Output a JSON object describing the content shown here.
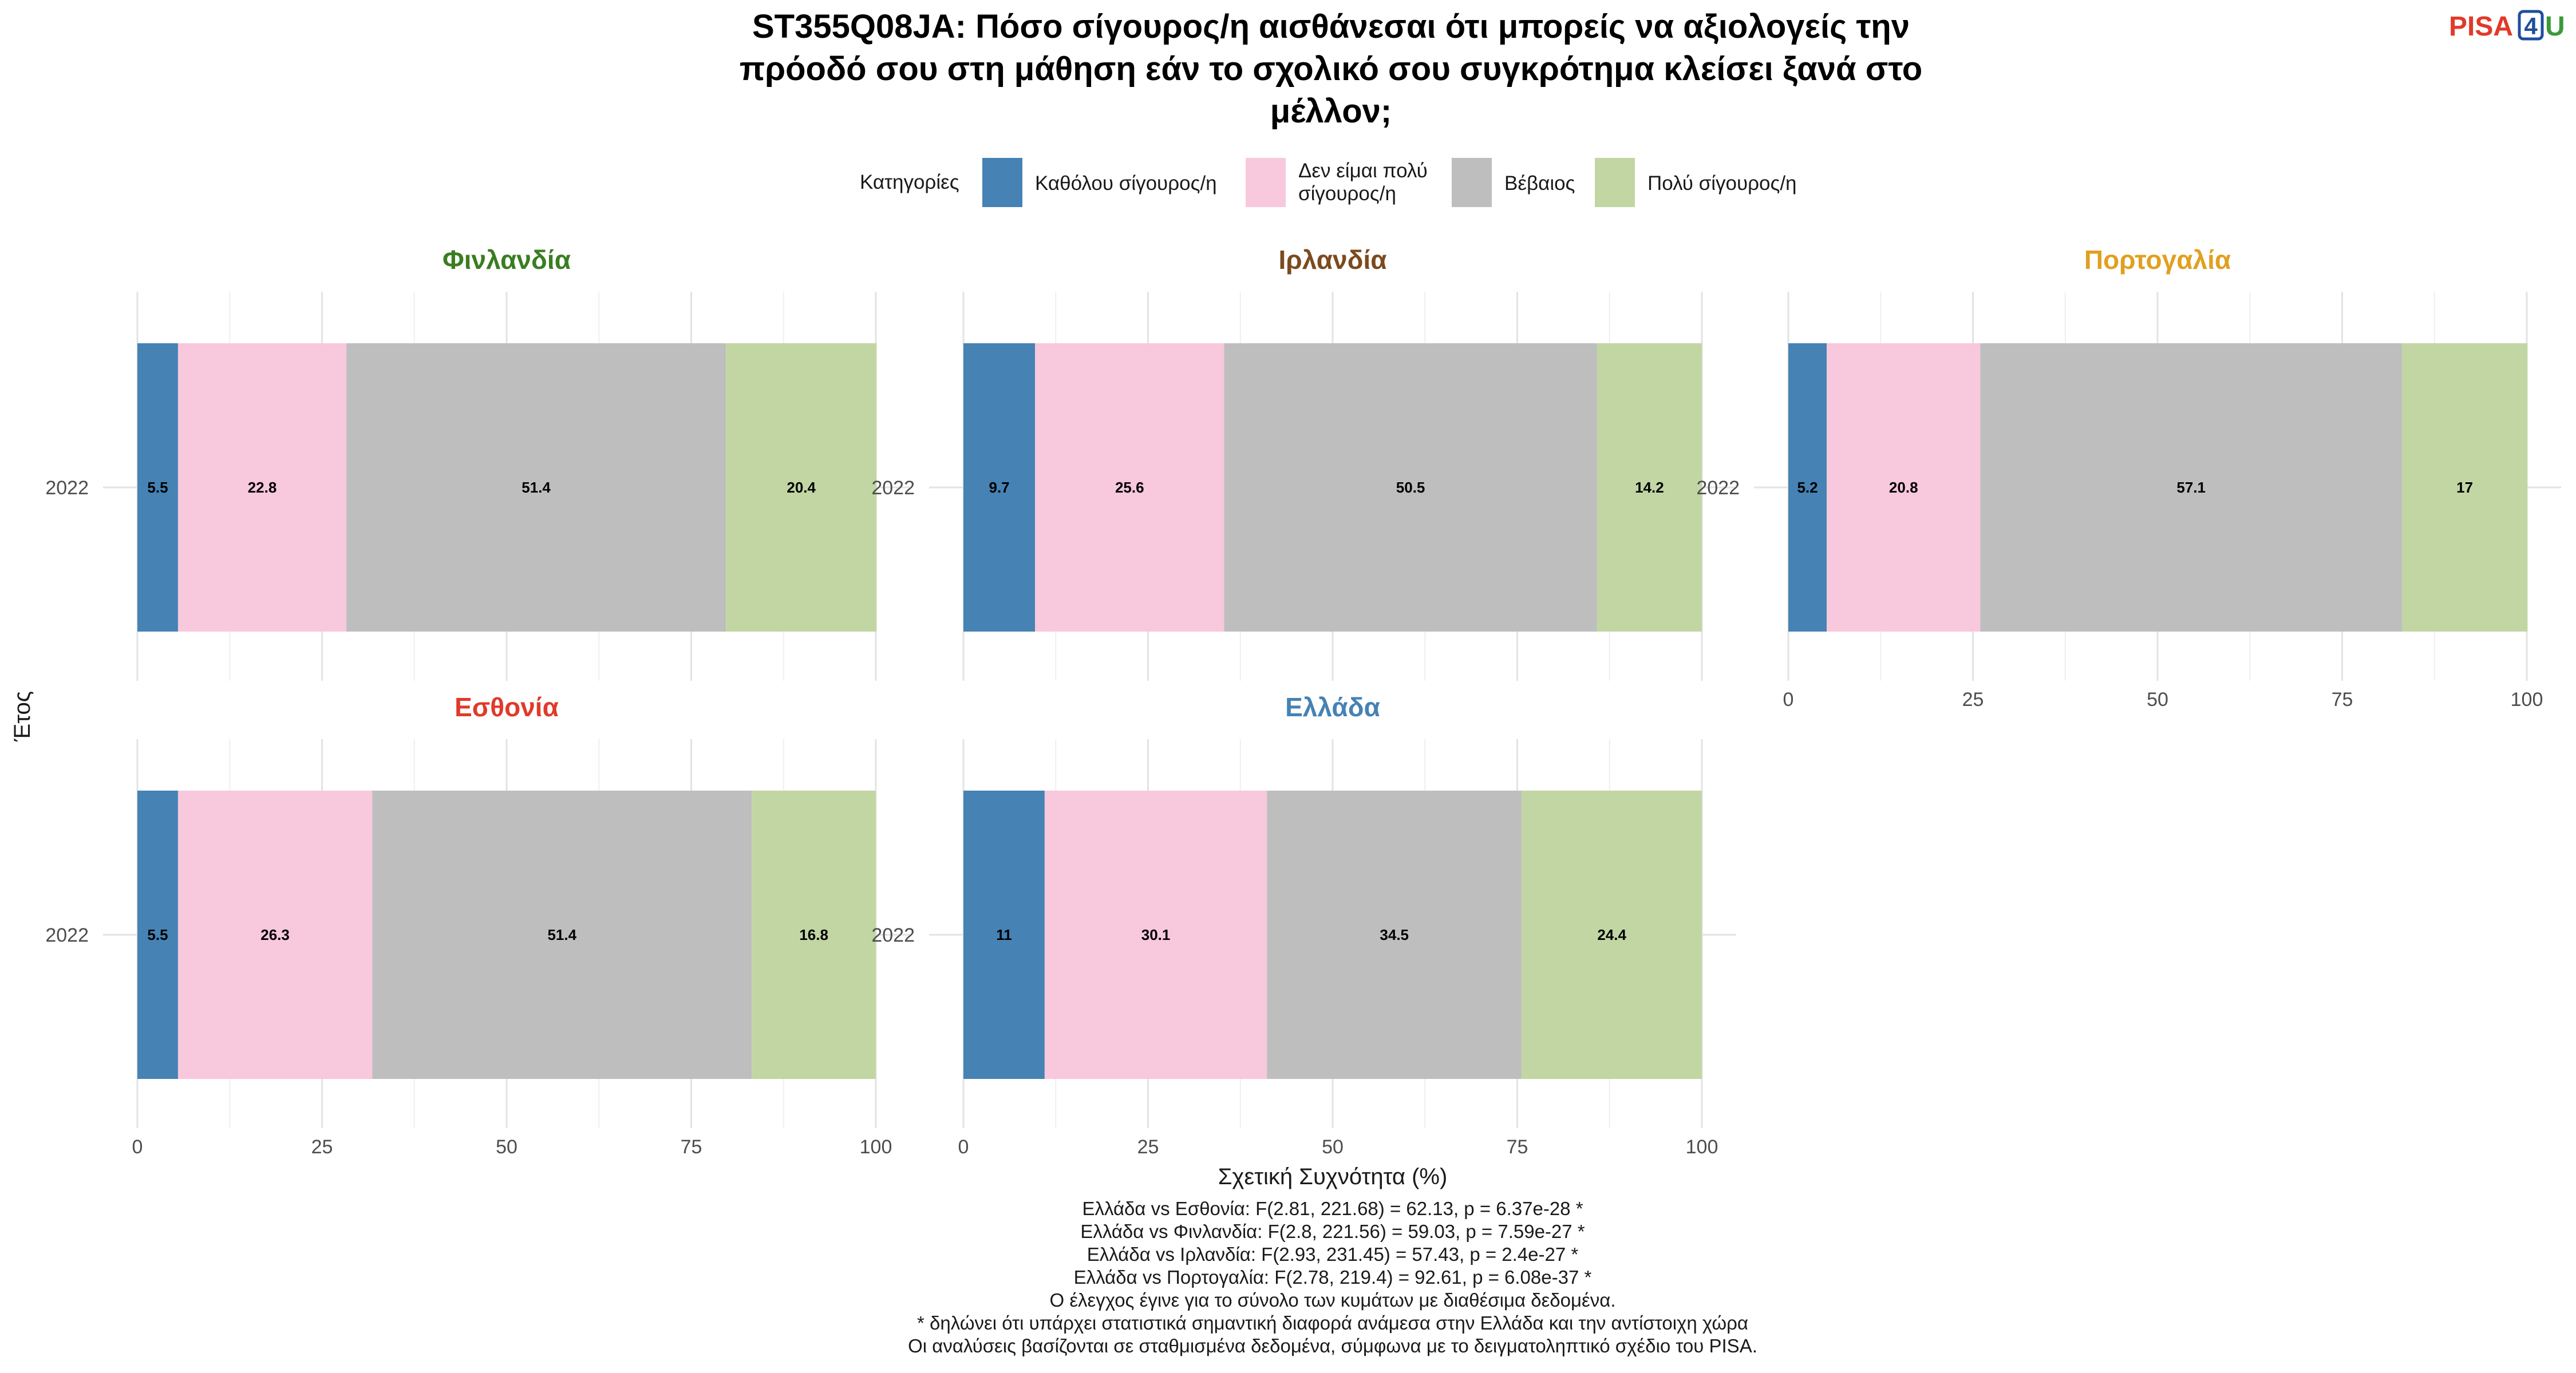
{
  "title": {
    "lines": [
      "ST355Q08JA: Πόσο σίγουρος/η αισθάνεσαι ότι μπορείς να αξιολογείς την",
      "πρόοδό σου στη μάθηση εάν το σχολικό σου συγκρότημα κλείσει ξανά στο",
      "μέλλον;"
    ]
  },
  "logo": {
    "text": "PISA",
    "digit": "4",
    "suffix": "U"
  },
  "legend": {
    "title": "Κατηγορίες",
    "items": [
      {
        "lines": [
          "Καθόλου σίγουρος/η"
        ],
        "color": "#4682b4"
      },
      {
        "lines": [
          "Δεν είμαι πολύ",
          "σίγουρος/η"
        ],
        "color": "#f8c8dc"
      },
      {
        "lines": [
          "Βέβαιος"
        ],
        "color": "#bebebe"
      },
      {
        "lines": [
          "Πολύ σίγουρος/η"
        ],
        "color": "#c2d6a4"
      }
    ]
  },
  "chart_data": {
    "type": "bar",
    "orientation": "horizontal",
    "stacked": true,
    "xlabel": "Σχετική Συχνότητα (%)",
    "ylabel": "Έτος",
    "xlim": [
      0,
      100
    ],
    "xticks": [
      0,
      25,
      50,
      75,
      100
    ],
    "categories": [
      "Καθόλου σίγουρος/η",
      "Δεν είμαι πολύ σίγουρος/η",
      "Βέβαιος",
      "Πολύ σίγουρος/η"
    ],
    "panels": [
      {
        "name": "Φινλανδία",
        "color": "#3a7d22",
        "year": "2022",
        "values": [
          5.5,
          22.8,
          51.4,
          20.4
        ],
        "labels": [
          "5.5",
          "22.8",
          "51.4",
          "20.4"
        ]
      },
      {
        "name": "Ιρλανδία",
        "color": "#7b4a1e",
        "year": "2022",
        "values": [
          9.7,
          25.6,
          50.5,
          14.2
        ],
        "labels": [
          "9.7",
          "25.6",
          "50.5",
          "14.2"
        ]
      },
      {
        "name": "Πορτογαλία",
        "color": "#e0a020",
        "year": "2022",
        "values": [
          5.2,
          20.8,
          57.1,
          17.0
        ],
        "labels": [
          "5.2",
          "20.8",
          "57.1",
          "17"
        ]
      },
      {
        "name": "Εσθονία",
        "color": "#e03a2a",
        "year": "2022",
        "values": [
          5.5,
          26.3,
          51.4,
          16.8
        ],
        "labels": [
          "5.5",
          "26.3",
          "51.4",
          "16.8"
        ]
      },
      {
        "name": "Ελλάδα",
        "color": "#4682b4",
        "year": "2022",
        "values": [
          11.0,
          30.1,
          34.5,
          24.4
        ],
        "labels": [
          "11",
          "30.1",
          "34.5",
          "24.4"
        ]
      }
    ]
  },
  "footnotes": [
    "Ελλάδα vs Εσθονία: F(2.81, 221.68) = 62.13, p = 6.37e-28 *",
    "Ελλάδα vs Φινλανδία: F(2.8, 221.56) = 59.03, p = 7.59e-27 *",
    "Ελλάδα vs Ιρλανδία: F(2.93, 231.45) = 57.43, p = 2.4e-27 *",
    "Ελλάδα vs Πορτογαλία: F(2.78, 219.4) = 92.61, p = 6.08e-37 *",
    "Ο έλεγχος έγινε για το σύνολο των κυμάτων με διαθέσιμα δεδομένα.",
    "* δηλώνει ότι υπάρχει στατιστικά σημαντική διαφορά ανάμεσα στην Ελλάδα και την αντίστοιχη χώρα",
    "Οι αναλύσεις βασίζονται σε σταθμισμένα δεδομένα, σύμφωνα με το δειγματοληπτικό σχέδιο του PISA."
  ]
}
